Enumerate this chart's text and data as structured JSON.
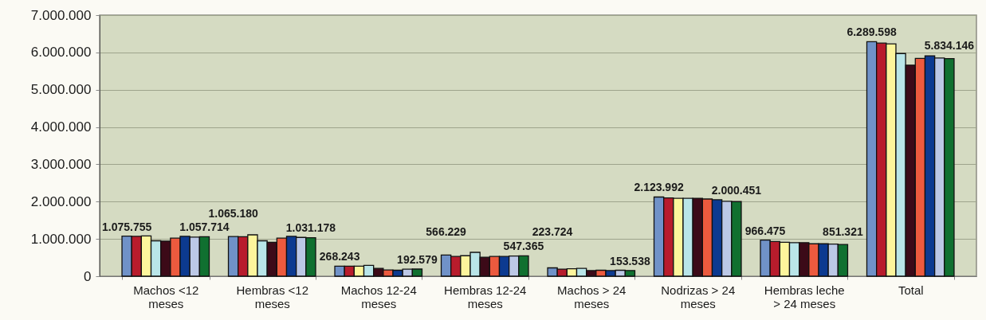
{
  "chart_data": {
    "type": "bar",
    "categories": [
      "Machos <12 meses",
      "Hembras <12 meses",
      "Machos 12-24 meses",
      "Hembras 12-24 meses",
      "Machos > 24 meses",
      "Nodrizas > 24 meses",
      "Hembras leche > 24 meses",
      "Total"
    ],
    "series": [
      {
        "color": "#7092c8",
        "values": [
          1075755,
          1065180,
          268243,
          566229,
          223724,
          2123992,
          966475,
          6289598
        ],
        "value_labels": [
          "1.075.755",
          "1.065.180",
          "268.243",
          "566.229",
          "223.724",
          "2.123.992",
          "966.475",
          "6.289.598"
        ]
      },
      {
        "color": "#b81c2c",
        "values": [
          1070000,
          1060000,
          270000,
          530000,
          190000,
          2100000,
          930000,
          6250000
        ]
      },
      {
        "color": "#fdf59c",
        "values": [
          1080000,
          1110000,
          270000,
          550000,
          200000,
          2090000,
          910000,
          6230000
        ]
      },
      {
        "color": "#b9e5e8",
        "values": [
          950000,
          950000,
          290000,
          640000,
          210000,
          2090000,
          900000,
          5970000
        ]
      },
      {
        "color": "#3c0a18",
        "values": [
          940000,
          910000,
          210000,
          510000,
          150000,
          2090000,
          900000,
          5660000
        ]
      },
      {
        "color": "#ec5a3e",
        "values": [
          1020000,
          1020000,
          170000,
          530000,
          160000,
          2070000,
          870000,
          5840000
        ]
      },
      {
        "color": "#0c3a90",
        "values": [
          1070000,
          1070000,
          160000,
          530000,
          150000,
          2050000,
          870000,
          5910000
        ]
      },
      {
        "color": "#bcc8e6",
        "values": [
          1050000,
          1040000,
          190000,
          540000,
          160000,
          2010000,
          860000,
          5850000
        ]
      },
      {
        "color": "#107030",
        "values": [
          1057714,
          1031178,
          192579,
          547365,
          153538,
          2000451,
          851321,
          5834146
        ],
        "value_labels": [
          "1.057.714",
          "1.031.178",
          "192.579",
          "547.365",
          "153.538",
          "2.000.451",
          "851.321",
          "5.834.146"
        ]
      }
    ],
    "ylim": [
      0,
      7000000
    ],
    "yticks": [
      0,
      {
        "value": 1000000,
        "label": "1.000.000"
      },
      {
        "value": 2000000,
        "label": "2.000.000"
      },
      {
        "value": 3000000,
        "label": "3.000.000"
      },
      {
        "value": 4000000,
        "label": "4.000.000"
      },
      {
        "value": 5000000,
        "label": "5.000.000"
      },
      {
        "value": 6000000,
        "label": "6.000.000"
      },
      {
        "value": 7000000,
        "label": "7.000.000"
      }
    ],
    "grid": "y"
  }
}
